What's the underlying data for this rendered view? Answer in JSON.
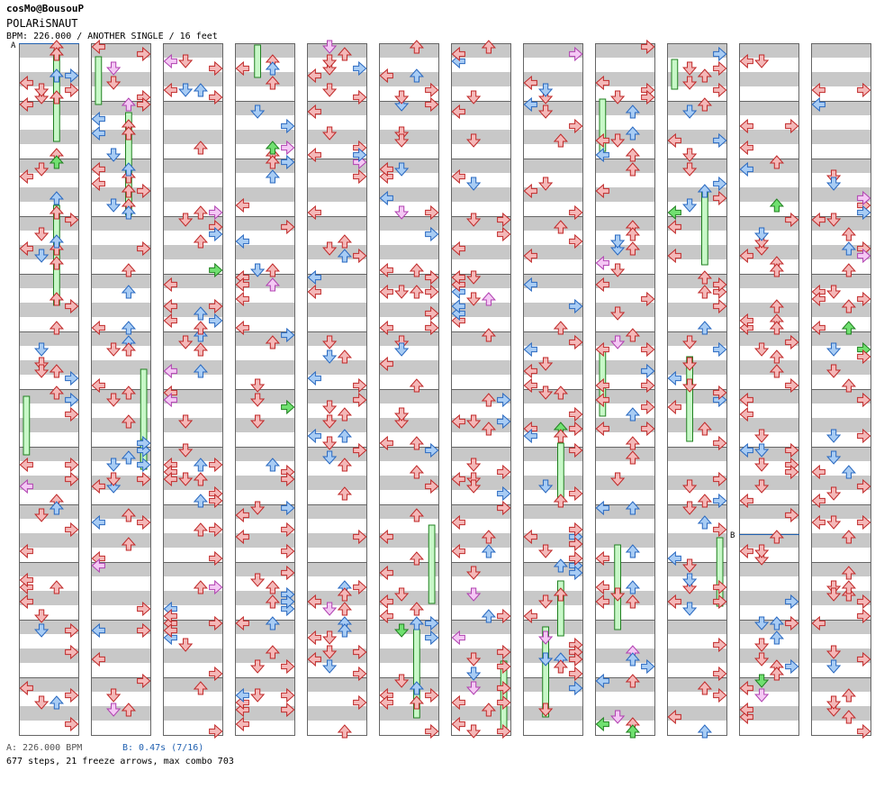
{
  "header": {
    "artist": "cosMo@BousouP",
    "title": "POLARiSNAUT",
    "meta": "BPM: 226.000 / ANOTHER SINGLE / 16 feet"
  },
  "markers": {
    "a": "A",
    "b": "B"
  },
  "footer": {
    "bpm_a": "A: 226.000 BPM",
    "bpm_b": "B: 0.47s (7/16)",
    "summary": "677 steps, 21 freeze arrows, max combo 703"
  },
  "chart_data": {
    "type": "step-chart",
    "title": "POLARiSNAUT",
    "difficulty": "ANOTHER SINGLE",
    "level": 16,
    "bpm": 226,
    "stop_b_seconds": 0.47,
    "total_steps": 677,
    "freeze_arrows": 21,
    "max_combo": 703,
    "columns": 12,
    "measures_per_column": 12,
    "lanes": [
      "left",
      "down",
      "up",
      "right"
    ],
    "colors": {
      "quarter": "#f4b8b8",
      "quarter_stroke": "#c02828",
      "eighth": "#a8ccf4",
      "eighth_stroke": "#2868c0",
      "sixteenth": "#f4c8f4",
      "sixteenth_stroke": "#b040b0",
      "shock": "#70e070",
      "shock_stroke": "#208020",
      "freeze": "#c8f8c8",
      "freeze_stroke": "#208020",
      "band": "#c8c8c8"
    }
  }
}
